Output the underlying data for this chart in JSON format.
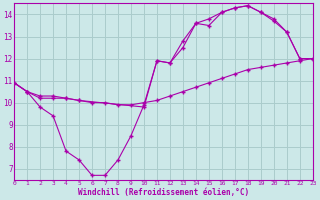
{
  "xlabel": "Windchill (Refroidissement éolien,°C)",
  "xlim": [
    0,
    23
  ],
  "ylim": [
    6.5,
    14.5
  ],
  "yticks": [
    7,
    8,
    9,
    10,
    11,
    12,
    13,
    14
  ],
  "xticks": [
    0,
    1,
    2,
    3,
    4,
    5,
    6,
    7,
    8,
    9,
    10,
    11,
    12,
    13,
    14,
    15,
    16,
    17,
    18,
    19,
    20,
    21,
    22,
    23
  ],
  "bg_color": "#cce8e8",
  "grid_color": "#aacccc",
  "line_color": "#aa00aa",
  "line1_x": [
    0,
    1,
    2,
    3,
    4,
    5,
    6,
    7,
    8,
    9,
    10,
    11,
    12,
    13,
    14,
    15,
    16,
    17,
    18,
    19,
    20,
    21,
    22,
    23
  ],
  "line1_y": [
    10.9,
    10.5,
    9.8,
    9.4,
    7.8,
    7.4,
    6.7,
    6.7,
    7.4,
    8.5,
    9.9,
    11.9,
    11.8,
    12.5,
    13.6,
    13.8,
    14.1,
    14.3,
    14.4,
    14.1,
    13.8,
    13.2,
    12.0,
    12.0
  ],
  "line2_x": [
    0,
    1,
    2,
    3,
    4,
    5,
    6,
    7,
    8,
    9,
    10,
    11,
    12,
    13,
    14,
    15,
    16,
    17,
    18,
    19,
    20,
    21,
    22,
    23
  ],
  "line2_y": [
    10.9,
    10.5,
    10.2,
    10.2,
    10.2,
    10.1,
    10.0,
    10.0,
    9.9,
    9.9,
    10.0,
    10.1,
    10.3,
    10.5,
    10.7,
    10.9,
    11.1,
    11.3,
    11.5,
    11.6,
    11.7,
    11.8,
    11.9,
    12.0
  ],
  "line3_x": [
    0,
    1,
    2,
    3,
    4,
    5,
    10,
    11,
    12,
    13,
    14,
    15,
    16,
    17,
    18,
    19,
    20,
    21,
    22,
    23
  ],
  "line3_y": [
    10.9,
    10.5,
    10.3,
    10.3,
    10.2,
    10.1,
    9.8,
    11.9,
    11.8,
    12.8,
    13.6,
    13.5,
    14.1,
    14.3,
    14.4,
    14.1,
    13.7,
    13.2,
    12.0,
    12.0
  ]
}
